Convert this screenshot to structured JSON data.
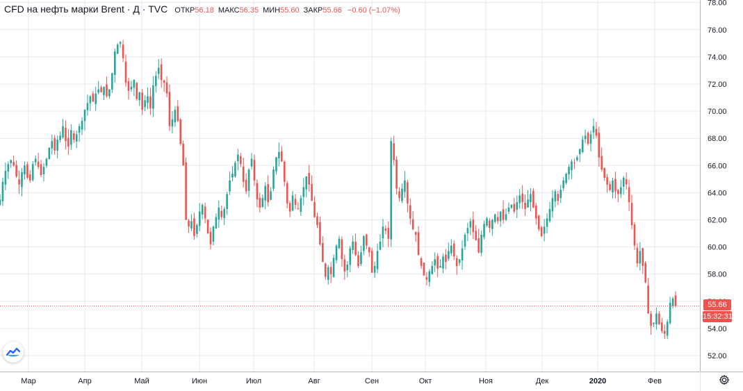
{
  "legend": {
    "symbol": "CFD на нефть марки Brent · Д · TVC",
    "open_label": "ОТКР",
    "open": "56.18",
    "high_label": "МАКС",
    "high": "56.35",
    "low_label": "МИН",
    "low": "55.60",
    "close_label": "ЗАКР",
    "close": "55.66",
    "change": "−0.60 (−1.07%)"
  },
  "price_tag": "55.66",
  "countdown_tag": "15:32:31",
  "colors": {
    "up": "#26a69a",
    "down": "#ef5350",
    "grid": "#e6e9ef",
    "axis_text": "#131722"
  },
  "icons": {
    "logo": "tradingview-logo-icon",
    "settings": "gear-icon"
  },
  "chart_data": {
    "type": "candlestick",
    "title": "CFD на нефть марки Brent · Д · TVC",
    "ylim": [
      51,
      78.5
    ],
    "y_ticks": [
      "52.00",
      "54.00",
      "56.00",
      "58.00",
      "60.00",
      "62.00",
      "64.00",
      "66.00",
      "68.00",
      "70.00",
      "72.00",
      "74.00",
      "76.00",
      "78.00"
    ],
    "x_ticks": [
      "Мар",
      "Апр",
      "Май",
      "Июн",
      "Июл",
      "Авг",
      "Сен",
      "Окт",
      "Ноя",
      "Дек",
      "2020",
      "Фев"
    ],
    "last_price": 55.66,
    "grid": true,
    "approx_closes": [
      63.5,
      64.8,
      65.6,
      66.1,
      66.4,
      66.0,
      65.2,
      64.6,
      65.5,
      66.0,
      65.1,
      64.9,
      66.1,
      66.5,
      65.9,
      65.3,
      65.9,
      66.5,
      67.3,
      67.8,
      67.1,
      67.9,
      68.2,
      68.9,
      67.8,
      67.4,
      68.6,
      67.9,
      68.3,
      68.9,
      69.3,
      70.1,
      70.6,
      71.1,
      70.7,
      71.3,
      71.6,
      71.4,
      71.8,
      71.1,
      71.6,
      72.8,
      74.4,
      74.9,
      75.1,
      73.9,
      72.1,
      71.5,
      71.8,
      72.3,
      70.9,
      71.4,
      70.1,
      70.8,
      71.1,
      70.2,
      71.9,
      72.6,
      73.2,
      72.3,
      72.1,
      71.3,
      68.9,
      69.4,
      70.1,
      69.3,
      67.6,
      66.0,
      62.0,
      61.5,
      61.9,
      60.8,
      61.6,
      62.6,
      63.1,
      62.1,
      61.0,
      60.2,
      61.5,
      62.2,
      62.9,
      62.2,
      62.8,
      63.9,
      64.9,
      65.4,
      66.2,
      66.8,
      66.1,
      64.8,
      64.1,
      65.7,
      66.5,
      64.9,
      63.5,
      62.9,
      63.6,
      64.5,
      63.3,
      64.1,
      65.7,
      66.6,
      67.0,
      66.3,
      64.8,
      63.2,
      62.6,
      63.8,
      63.1,
      62.8,
      63.6,
      64.4,
      65.2,
      64.6,
      63.4,
      62.2,
      61.6,
      60.2,
      58.9,
      57.8,
      58.5,
      58.0,
      59.2,
      60.1,
      60.6,
      59.1,
      58.2,
      58.7,
      59.9,
      60.4,
      59.4,
      58.6,
      59.6,
      60.8,
      60.1,
      59.6,
      58.1,
      58.6,
      59.7,
      60.4,
      61.5,
      61.2,
      60.6,
      67.8,
      66.4,
      64.3,
      63.6,
      64.3,
      64.9,
      63.2,
      62.1,
      61.3,
      60.9,
      59.4,
      58.6,
      57.9,
      57.6,
      58.2,
      58.6,
      59.1,
      58.4,
      58.6,
      59.3,
      58.9,
      59.7,
      60.1,
      59.3,
      58.6,
      59.1,
      59.9,
      60.9,
      61.4,
      61.9,
      61.1,
      60.5,
      59.6,
      60.9,
      61.7,
      62.1,
      61.4,
      62.0,
      62.4,
      61.9,
      62.6,
      62.0,
      62.4,
      62.9,
      63.1,
      62.6,
      63.3,
      63.8,
      63.3,
      62.8,
      63.5,
      63.9,
      62.9,
      62.1,
      61.3,
      60.8,
      61.5,
      62.1,
      62.8,
      63.6,
      64.1,
      63.4,
      64.2,
      64.9,
      65.4,
      65.9,
      66.3,
      66.2,
      66.6,
      67.2,
      67.9,
      68.2,
      67.6,
      68.3,
      68.9,
      68.2,
      66.6,
      65.7,
      65.1,
      64.6,
      64.2,
      64.9,
      64.1,
      63.9,
      64.4,
      65.1,
      64.6,
      63.3,
      61.6,
      60.1,
      58.8,
      59.7,
      58.6,
      57.4,
      55.1,
      54.2,
      54.4,
      55.1,
      54.3,
      53.8,
      53.6,
      54.5,
      55.9,
      56.2,
      55.66
    ]
  }
}
